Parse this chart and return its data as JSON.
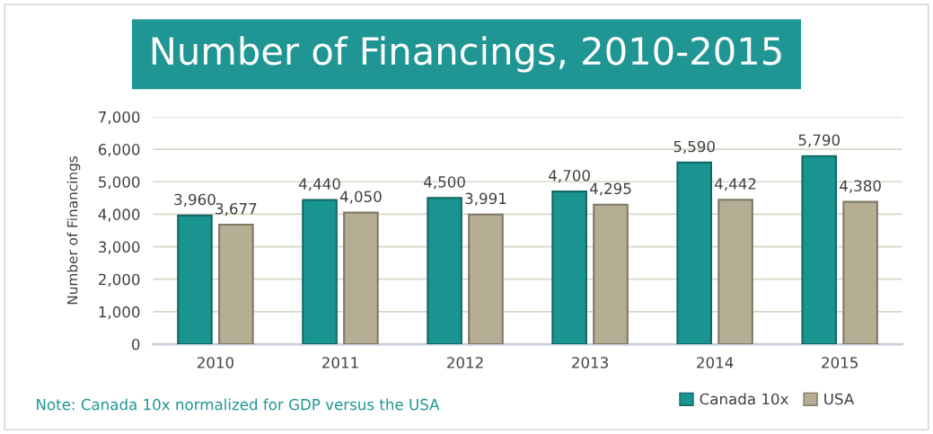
{
  "chart_data": {
    "type": "bar",
    "title": "Number of Financings, 2010-2015",
    "ylabel": "Number of Financings",
    "categories": [
      "2010",
      "2011",
      "2012",
      "2013",
      "2014",
      "2015"
    ],
    "series": [
      {
        "name": "Canada 10x",
        "color": "#1a9490",
        "values": [
          3960,
          4440,
          4500,
          4700,
          5590,
          5790
        ],
        "value_labels": [
          "3,960",
          "4,440",
          "4,500",
          "4,700",
          "5,590",
          "5,790"
        ]
      },
      {
        "name": "USA",
        "color": "#b5ad94",
        "values": [
          3677,
          4050,
          3991,
          4295,
          4442,
          4380
        ],
        "value_labels": [
          "3,677",
          "4,050",
          "3,991",
          "4,295",
          "4,442",
          "4,380"
        ]
      }
    ],
    "ylim": [
      0,
      7000
    ],
    "yticks": [
      {
        "value": 0,
        "label": "0"
      },
      {
        "value": 1000,
        "label": "1,000"
      },
      {
        "value": 2000,
        "label": "2,000"
      },
      {
        "value": 3000,
        "label": "3,000"
      },
      {
        "value": 4000,
        "label": "4,000"
      },
      {
        "value": 5000,
        "label": "5,000"
      },
      {
        "value": 6000,
        "label": "6,000"
      },
      {
        "value": 7000,
        "label": "7,000"
      }
    ],
    "grid": "y",
    "legend": "bottom right",
    "annotations": [
      "Note: Canada 10x normalized for GDP versus the USA"
    ]
  }
}
